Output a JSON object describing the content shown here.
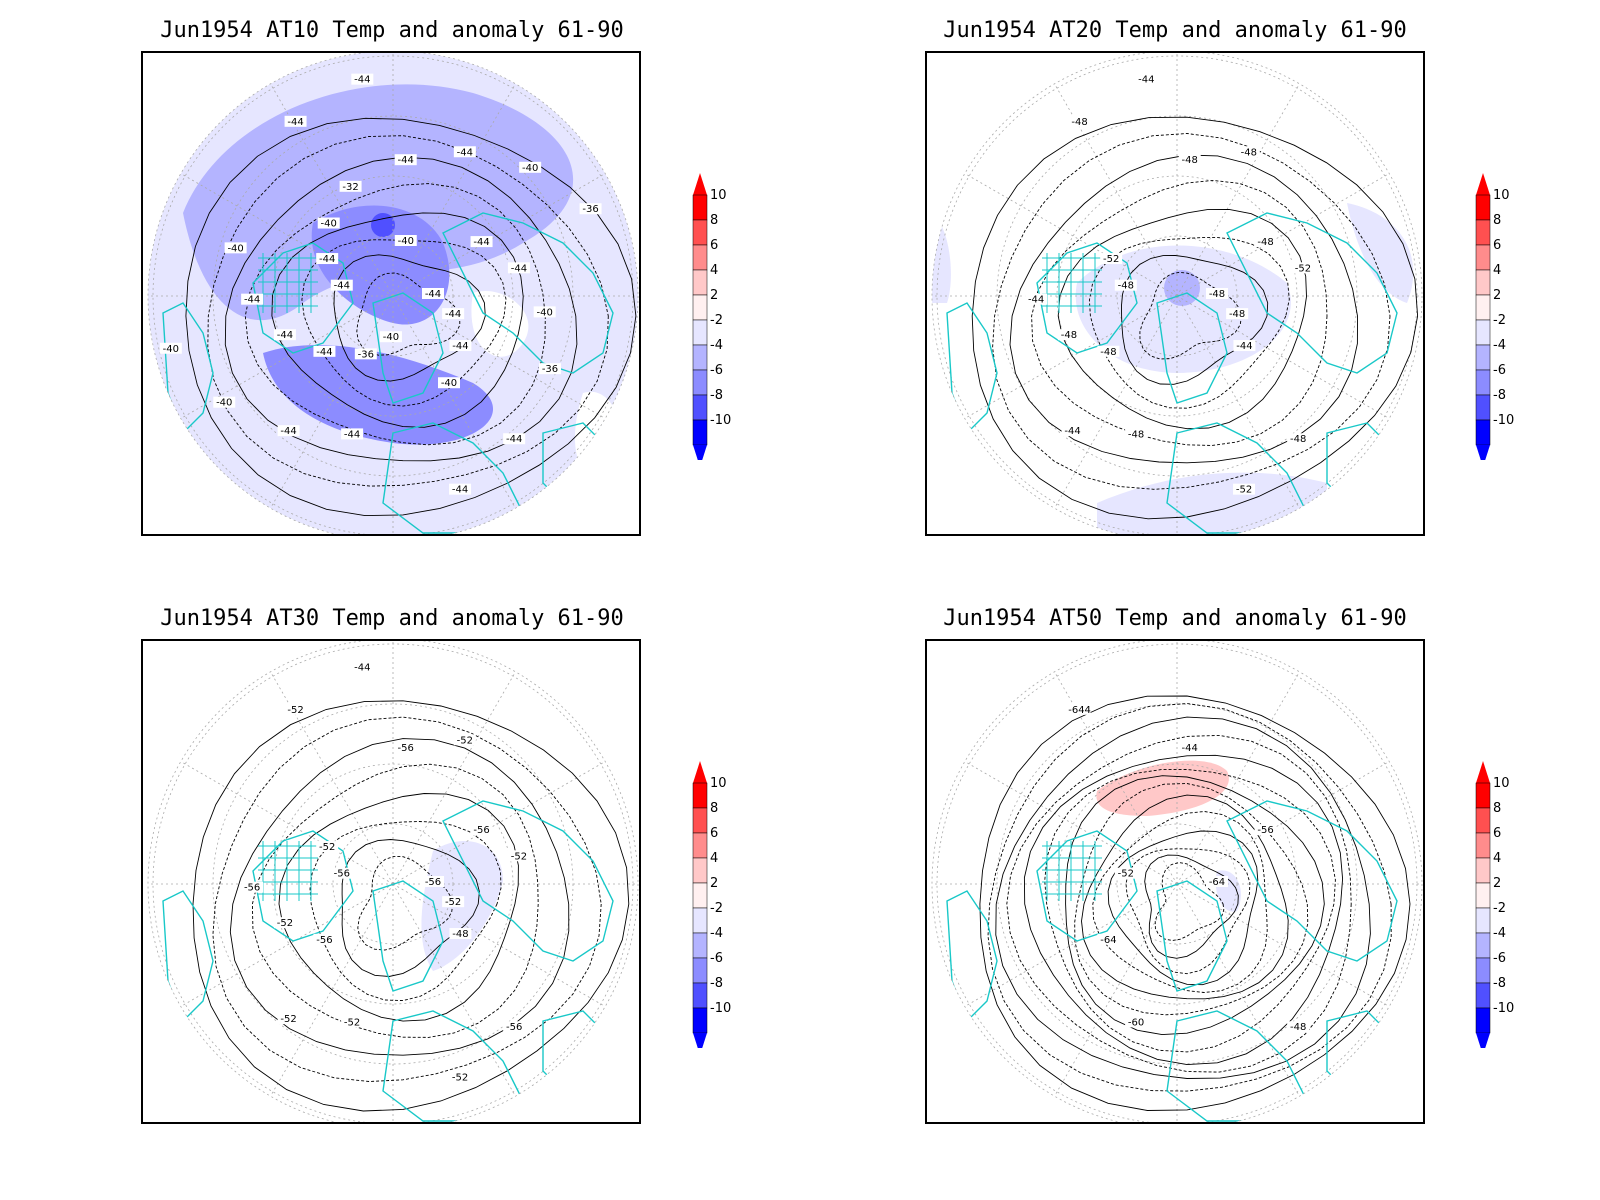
{
  "panels": [
    {
      "title": "Jun1954 AT10 Temp and anomaly 61-90",
      "labels": [
        "-44",
        "-44",
        "-44",
        "-44",
        "-44",
        "-44",
        "-44",
        "-44",
        "-44",
        "-44",
        "-44",
        "-44",
        "-44",
        "-44",
        "-44",
        "-44",
        "-44",
        "-44",
        "-40",
        "-40",
        "-40",
        "-40",
        "-40",
        "-40",
        "-40",
        "-40",
        "-36",
        "-36",
        "-32",
        "-36",
        "-40"
      ],
      "anomaly": "negative-strong"
    },
    {
      "title": "Jun1954 AT20 Temp and anomaly 61-90",
      "labels": [
        "-48",
        "-48",
        "-48",
        "-48",
        "-48",
        "-48",
        "-48",
        "-48",
        "-48",
        "-48",
        "-48",
        "-52",
        "-52",
        "-52",
        "-44",
        "-44",
        "-44",
        "-44"
      ],
      "anomaly": "negative-weak"
    },
    {
      "title": "Jun1954 AT30 Temp and anomaly 61-90",
      "labels": [
        "-56",
        "-56",
        "-56",
        "-56",
        "-56",
        "-56",
        "-52",
        "-52",
        "-52",
        "-52",
        "-52",
        "-52",
        "-52",
        "-52",
        "-52",
        "-44",
        "-48",
        "-56"
      ],
      "anomaly": "negative-small"
    },
    {
      "title": "Jun1954 AT50 Temp and anomaly 61-90",
      "labels": [
        "-64",
        "-64",
        "-44",
        "-48",
        "-52",
        "-56",
        "-60",
        "-644"
      ],
      "anomaly": "positive-small"
    }
  ],
  "colorbar": {
    "ticks": [
      "10",
      "8",
      "6",
      "4",
      "2",
      "-2",
      "-4",
      "-6",
      "-8",
      "-10"
    ],
    "colors": [
      "#ff0000",
      "#ff5050",
      "#ff8c8c",
      "#ffc8c8",
      "#fff0f0",
      "#e6e6ff",
      "#b4b4ff",
      "#8c8cff",
      "#5050ff",
      "#0000ff"
    ]
  },
  "style": {
    "coast_color": "#19c8c8",
    "grid_color": "#aaaaaa"
  }
}
